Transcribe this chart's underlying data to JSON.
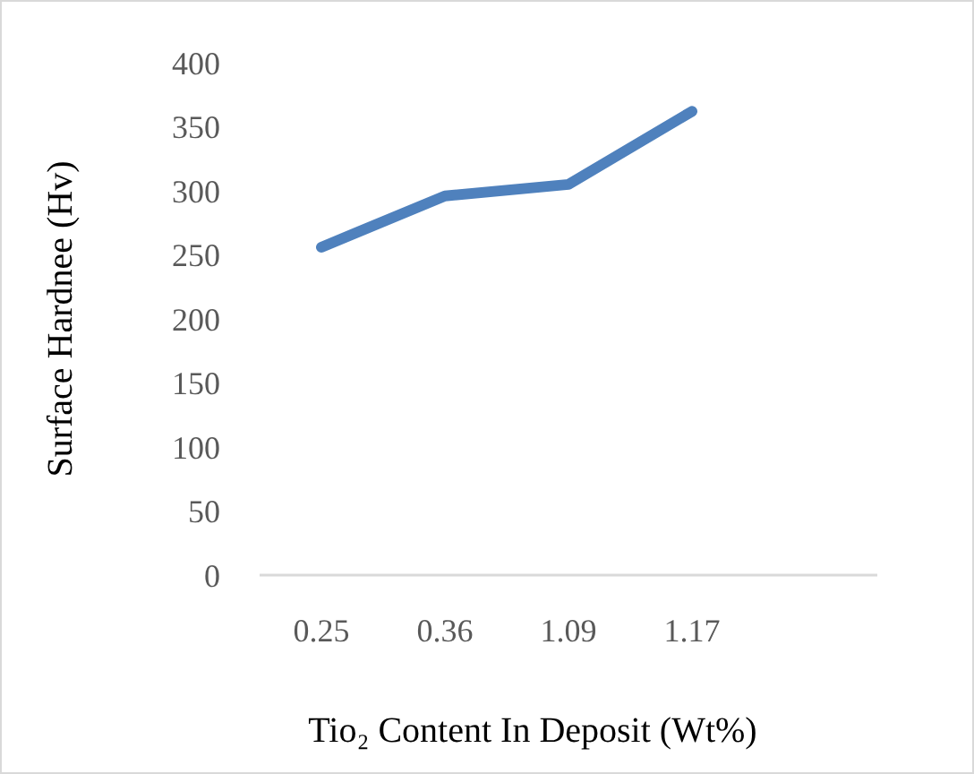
{
  "chart_data": {
    "type": "line",
    "xlabel": "Tio₂ Content In Deposit (Wt%)",
    "ylabel": "Surface Hardnee (Hv)",
    "categories": [
      "0.25",
      "0.36",
      "1.09",
      "1.17",
      null
    ],
    "series": [
      {
        "color": "#4f81bd",
        "values": [
          256,
          296,
          305,
          362,
          null
        ]
      }
    ],
    "ylim": [
      0,
      400
    ],
    "yticks": [
      0,
      50,
      100,
      150,
      200,
      250,
      300,
      350,
      400
    ],
    "grid": false,
    "marker": "none",
    "line_style": "solid"
  }
}
